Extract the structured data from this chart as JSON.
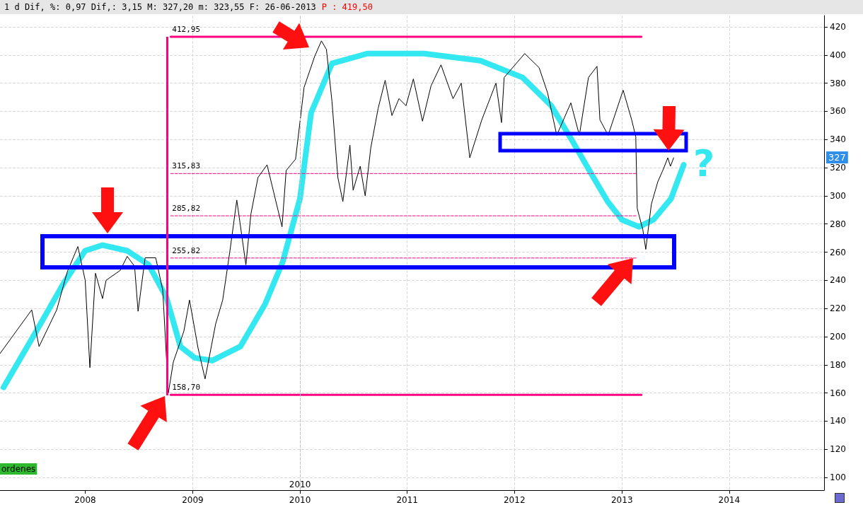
{
  "chart_data": {
    "type": "line",
    "title": "1 d Dif, %: 0,97 Dif,: 3,15 M: 327,20 m: 323,55 F: 26-06-2013",
    "subtitle": "P : 419,50",
    "xlim": [
      "2007-03-17",
      "2014-11-20"
    ],
    "xticks": [
      "2008",
      "2009",
      "2010",
      "2011",
      "2012",
      "2013",
      "2014"
    ],
    "ylim": [
      91,
      428
    ],
    "yticks": [
      100,
      120,
      140,
      160,
      180,
      200,
      220,
      240,
      260,
      280,
      300,
      320,
      340,
      360,
      380,
      400,
      420
    ],
    "grid": true,
    "ref_lines": [
      {
        "axis": "x",
        "value": "2010",
        "label": "2010",
        "color": "#c0c0c0",
        "line_style": "dashed"
      }
    ],
    "annotations": [
      "?",
      "ordenes",
      {
        "text": "327",
        "y": 327
      }
    ],
    "series": [
      {
        "color": "#000000",
        "line_style": "solid",
        "x": [
          "2007-03-17",
          "2007-07-03",
          "2007-07-28",
          "2007-09-26",
          "2007-11-01",
          "2007-12-07",
          "2008-01-01",
          "2008-01-17",
          "2008-02-05",
          "2008-02-29",
          "2008-03-12",
          "2008-04-29",
          "2008-05-23",
          "2008-06-17",
          "2008-06-29",
          "2008-07-23",
          "2008-08-28",
          "2008-09-21",
          "2008-10-10",
          "2008-10-27",
          "2008-12-02",
          "2008-12-21",
          "2009-01-19",
          "2009-02-12",
          "2009-03-20",
          "2009-04-13",
          "2009-05-07",
          "2009-05-31",
          "2009-07-01",
          "2009-07-18",
          "2009-08-11",
          "2009-09-11",
          "2009-11-01",
          "2009-11-15",
          "2009-12-17",
          "2010-01-15",
          "2010-02-20",
          "2010-03-15",
          "2010-04-01",
          "2010-04-20",
          "2010-05-10",
          "2010-05-27",
          "2010-06-20",
          "2010-07-01",
          "2010-07-25",
          "2010-08-11",
          "2010-08-30",
          "2010-09-24",
          "2010-10-18",
          "2010-11-10",
          "2010-12-04",
          "2010-12-28",
          "2011-01-22",
          "2011-02-22",
          "2011-03-23",
          "2011-04-26",
          "2011-06-06",
          "2011-07-04",
          "2011-08-02",
          "2011-09-12",
          "2011-10-30",
          "2011-11-18",
          "2011-11-27",
          "2012-02-05",
          "2012-03-25",
          "2012-04-23",
          "2012-05-24",
          "2012-07-11",
          "2012-08-09",
          "2012-09-09",
          "2012-10-08",
          "2012-10-18",
          "2012-11-15",
          "2013-01-05",
          "2013-02-03",
          "2013-02-17",
          "2013-02-22",
          "2013-03-13",
          "2013-03-23",
          "2013-04-11",
          "2013-05-03",
          "2013-05-22",
          "2013-06-06",
          "2013-06-15",
          "2013-06-26"
        ],
        "values": [
          188,
          219,
          193,
          219,
          246,
          264,
          240,
          178,
          245,
          227,
          240,
          247,
          257,
          250,
          218,
          256,
          256,
          233,
          160,
          182,
          204,
          226,
          192,
          170,
          209,
          226,
          260,
          297,
          251,
          287,
          313,
          322,
          278,
          318,
          326,
          377,
          399,
          410,
          404,
          367,
          313,
          296,
          336,
          304,
          321,
          300,
          334,
          362,
          382,
          357,
          369,
          364,
          383,
          353,
          378,
          393,
          369,
          380,
          327,
          354,
          380,
          352,
          384,
          401,
          391,
          373,
          343,
          366,
          343,
          384,
          392,
          354,
          343,
          375,
          354,
          342,
          291,
          276,
          262,
          294,
          310,
          319,
          327,
          321,
          327
        ]
      },
      {
        "color": "#33e8f0",
        "line_style": "solid",
        "x": [
          "2007-03-29",
          "2007-07-16",
          "2007-10-20",
          "2008-01-01",
          "2008-02-29",
          "2008-05-23",
          "2008-08-04",
          "2008-10-03",
          "2008-11-20",
          "2009-01-08",
          "2009-03-08",
          "2009-06-12",
          "2009-09-04",
          "2009-11-03",
          "2010-01-01",
          "2010-02-08",
          "2010-04-20",
          "2010-08-18",
          "2011-02-27",
          "2011-09-07",
          "2012-01-29",
          "2012-05-05",
          "2012-07-16",
          "2012-09-26",
          "2012-11-13",
          "2013-01-01",
          "2013-02-28",
          "2013-04-18",
          "2013-06-17",
          "2013-07-30"
        ],
        "values": [
          164,
          203,
          238,
          261,
          265,
          261,
          251,
          228,
          193,
          185,
          183,
          193,
          223,
          253,
          298,
          359,
          394,
          401,
          401,
          396,
          384,
          364,
          339,
          313,
          296,
          283,
          278,
          283,
          298,
          322
        ]
      },
      {
        "color": "#ff0080",
        "line_style": "solid",
        "x": [
          "2008-10-18",
          "2013-03-08"
        ],
        "values": [
          412.95,
          412.95
        ],
        "value_labels": [
          "412,95",
          null
        ]
      },
      {
        "color": "#ff0080",
        "line_style": "solid",
        "x": [
          "2008-10-18",
          "2013-03-08"
        ],
        "values": [
          158.7,
          158.7
        ],
        "value_labels": [
          "158,70",
          null
        ]
      },
      {
        "color": "#ff0080",
        "line_style": "dashed",
        "x": [
          "2008-10-18",
          "2013-02-22"
        ],
        "values": [
          315.83,
          315.83
        ],
        "value_labels": [
          "315,83",
          null
        ]
      },
      {
        "color": "#ff0080",
        "line_style": "dashed",
        "x": [
          "2008-10-18",
          "2013-02-22"
        ],
        "values": [
          285.82,
          285.82
        ],
        "value_labels": [
          "285,82",
          null
        ]
      },
      {
        "color": "#ff0080",
        "line_style": "dashed",
        "x": [
          "2008-10-18",
          "2013-02-22"
        ],
        "values": [
          255.82,
          255.82
        ],
        "value_labels": [
          "255,82",
          null
        ]
      }
    ]
  }
}
